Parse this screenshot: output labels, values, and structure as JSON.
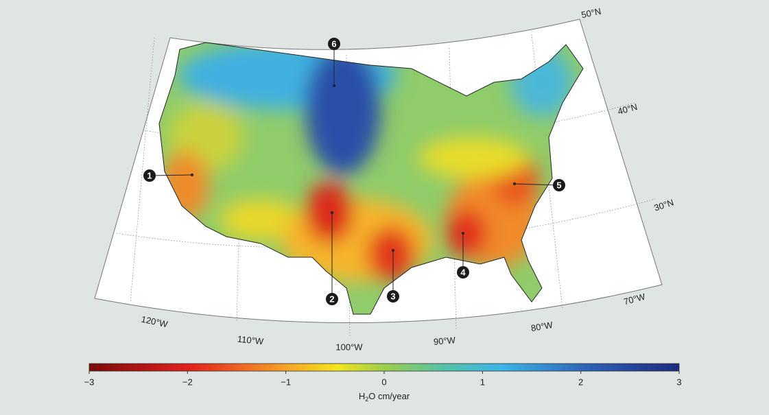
{
  "map": {
    "latitude_labels": [
      "50°N",
      "40°N",
      "30°N"
    ],
    "longitude_labels": [
      "120°W",
      "110°W",
      "100°W",
      "90°W",
      "80°W",
      "70°W"
    ],
    "markers": [
      "1",
      "2",
      "3",
      "4",
      "5",
      "6"
    ]
  },
  "colorbar": {
    "lim": [
      -3,
      3
    ],
    "ticks": [
      {
        "value": -3,
        "label": "−3"
      },
      {
        "value": -2,
        "label": "−2"
      },
      {
        "value": -1,
        "label": "−1"
      },
      0,
      1,
      2,
      3
    ],
    "label": [
      "H",
      "2",
      "O cm/year"
    ]
  }
}
